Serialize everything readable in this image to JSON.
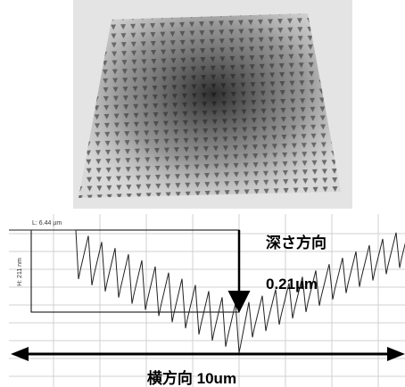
{
  "profile": {
    "length_label": "L: 6.44 µm",
    "height_label": "H: 211 nm"
  },
  "annotations": {
    "depth_title": "深さ方向",
    "depth_value": "0.21µm",
    "lateral": "横方向 10um"
  }
}
